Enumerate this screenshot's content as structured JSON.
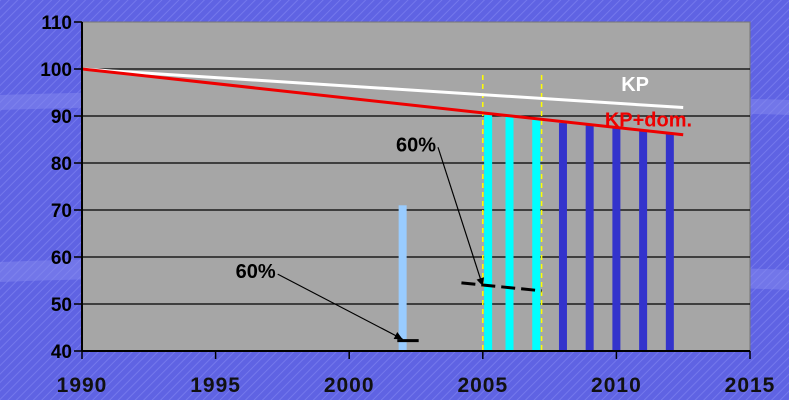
{
  "chart_data": {
    "type": "bar",
    "xlim": [
      1990,
      2015
    ],
    "ylim": [
      40,
      110
    ],
    "x_ticks": [
      1990,
      1995,
      2000,
      2005,
      2010,
      2015
    ],
    "y_ticks": [
      40,
      50,
      60,
      70,
      80,
      90,
      100,
      110
    ],
    "grid": true,
    "colors": {
      "kp_line": "#ffffff",
      "kp_dom_line": "#ee0000",
      "bar_light": "#99ccff",
      "bar_cyan": "#00ffff",
      "bar_dark": "#3333cc",
      "vline": "#ffff00",
      "plot_bg": "#a6a6a6",
      "page_bg": "#5f63e3"
    },
    "lines": [
      {
        "name": "KP",
        "color": "#ffffff",
        "points": [
          [
            1990,
            100
          ],
          [
            2012.5,
            91.8
          ]
        ]
      },
      {
        "name": "KP+dom.",
        "color": "#ee0000",
        "points": [
          [
            1990,
            100
          ],
          [
            2012.5,
            86
          ]
        ]
      }
    ],
    "bars": [
      {
        "x": 2002,
        "value": 71,
        "color": "#99ccff"
      },
      {
        "x": 2005.2,
        "value": 90.2,
        "color": "#00ffff"
      },
      {
        "x": 2006,
        "value": 89.8,
        "color": "#00ffff"
      },
      {
        "x": 2007,
        "value": 89.2,
        "color": "#00ffff"
      },
      {
        "x": 2008,
        "value": 88.5,
        "color": "#3333cc"
      },
      {
        "x": 2009,
        "value": 88,
        "color": "#3333cc"
      },
      {
        "x": 2010,
        "value": 87.4,
        "color": "#3333cc"
      },
      {
        "x": 2011,
        "value": 86.8,
        "color": "#3333cc"
      },
      {
        "x": 2012,
        "value": 86.2,
        "color": "#3333cc"
      }
    ],
    "vlines": [
      2005,
      2007.2
    ],
    "segments": [
      {
        "type": "solid",
        "points": [
          [
            2001.8,
            42.2
          ],
          [
            2002.6,
            42.2
          ]
        ]
      },
      {
        "type": "dashed",
        "points": [
          [
            2004.2,
            54.5
          ],
          [
            2007.2,
            52.8
          ]
        ]
      }
    ],
    "annotations": [
      {
        "text": "60%",
        "x": 1996.5,
        "y": 55.5,
        "arrow_to": [
          2002,
          42.5
        ],
        "color": "#000000"
      },
      {
        "text": "60%",
        "x": 2002.5,
        "y": 82.5,
        "arrow_to": [
          2005.0,
          53.8
        ],
        "color": "#000000"
      },
      {
        "text": "KP",
        "x": 2010.7,
        "y": 95.3,
        "color": "#ffffff"
      },
      {
        "text": "KP+dom.",
        "x": 2011.2,
        "y": 87.8,
        "color": "#ee0000"
      }
    ]
  }
}
